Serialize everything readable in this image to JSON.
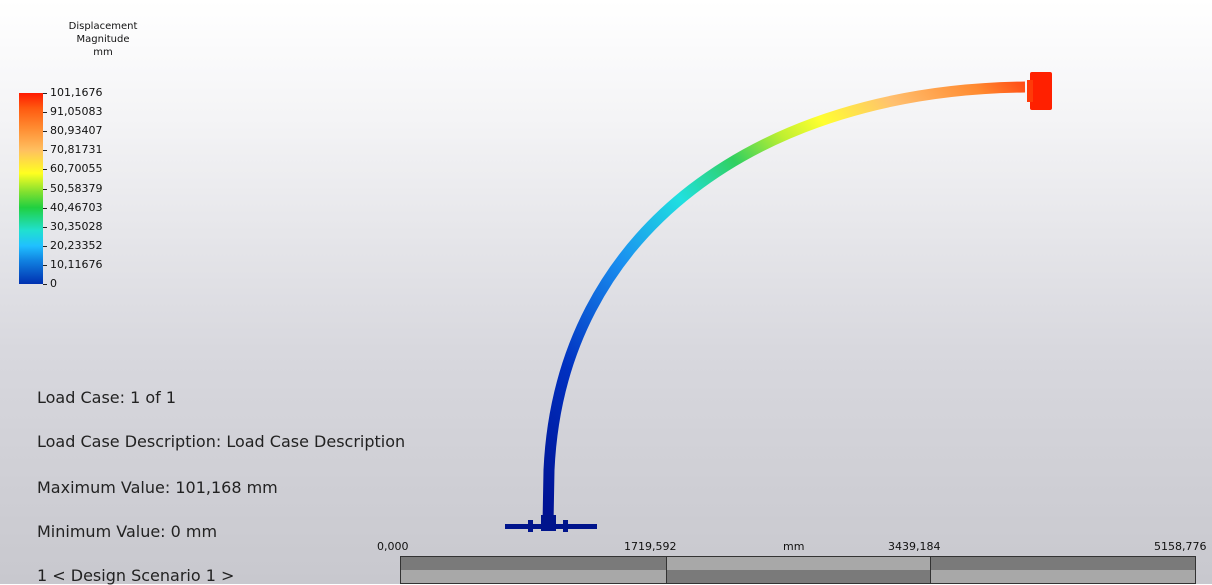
{
  "legend": {
    "title_line1": "Displacement",
    "title_line2": "Magnitude",
    "unit": "mm",
    "values": [
      "101,1676",
      "91,05083",
      "80,93407",
      "70,81731",
      "60,70055",
      "50,58379",
      "40,46703",
      "30,35028",
      "20,23352",
      "10,11676",
      "0"
    ],
    "colors": {
      "max": "#ff1a00",
      "high": "#ff8a30",
      "mid_high": "#ffff20",
      "mid": "#20d040",
      "mid_low": "#20e0d0",
      "low": "#1080e0",
      "min": "#0030b0"
    }
  },
  "info": {
    "load_case": "Load Case:  1 of 1",
    "load_case_description": "Load Case Description:  Load Case Description",
    "max_value": "Maximum Value: 101,168 mm",
    "min_value": "Minimum Value: 0 mm",
    "scenario": "1 < Design Scenario 1 >"
  },
  "scale": {
    "labels": [
      "0,000",
      "1719,592",
      "3439,184",
      "5158,776"
    ],
    "unit": "mm"
  },
  "model": {
    "fixed_support_color": "#00148c",
    "tip_color": "#ff2000"
  }
}
